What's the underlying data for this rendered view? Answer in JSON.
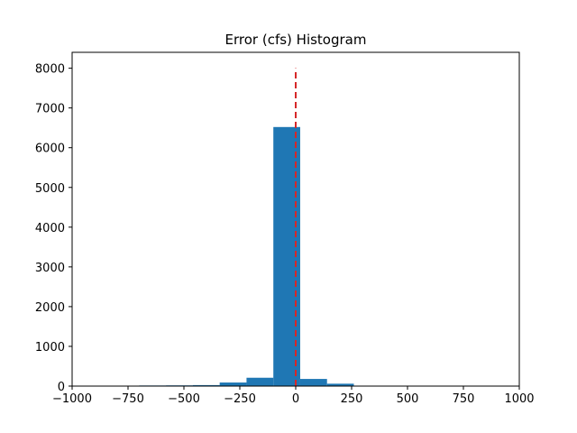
{
  "chart_data": {
    "type": "bar",
    "title": "Error (cfs) Histogram",
    "xlabel": "",
    "ylabel": "",
    "xlim": [
      -1000,
      1000
    ],
    "ylim": [
      0,
      8400
    ],
    "x_ticks": [
      -1000,
      -750,
      -500,
      -250,
      0,
      250,
      500,
      750,
      1000
    ],
    "x_tick_labels": [
      "−1000",
      "−750",
      "−500",
      "−250",
      "0",
      "250",
      "500",
      "750",
      "1000"
    ],
    "y_ticks": [
      0,
      1000,
      2000,
      3000,
      4000,
      5000,
      6000,
      7000,
      8000
    ],
    "y_tick_labels": [
      "0",
      "1000",
      "2000",
      "3000",
      "4000",
      "5000",
      "6000",
      "7000",
      "8000"
    ],
    "bin_edges": [
      -822,
      -700,
      -580,
      -460,
      -340,
      -220,
      -100,
      20,
      140,
      260,
      380
    ],
    "values": [
      10,
      15,
      18,
      25,
      90,
      210,
      6520,
      180,
      60,
      8
    ],
    "bar_color": "#1f77b4",
    "reference_line": {
      "x": 0,
      "y_range": [
        0,
        8000
      ],
      "color": "#d62728",
      "style": "dashed"
    },
    "grid": false,
    "legend": "none"
  }
}
